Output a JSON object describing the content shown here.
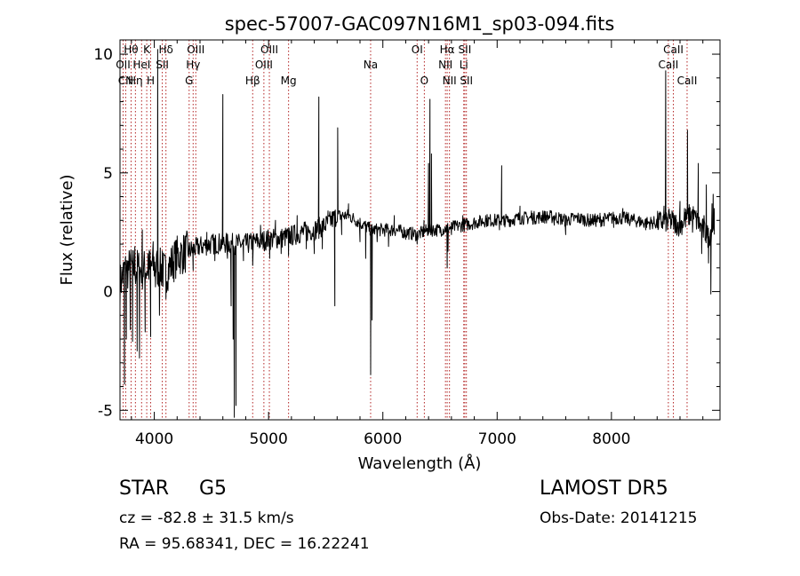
{
  "chart_data": {
    "type": "line",
    "title": "spec-57007-GAC097N16M1_sp03-094.fits",
    "xlabel": "Wavelength (Å)",
    "ylabel": "Flux (relative)",
    "xlim": [
      3700,
      8950
    ],
    "ylim": [
      -5.4,
      10.6
    ],
    "xticks": [
      4000,
      5000,
      6000,
      7000,
      8000
    ],
    "xtick_labels": [
      "4000",
      "5000",
      "6000",
      "7000",
      "8000"
    ],
    "yticks": [
      -5,
      0,
      5,
      10
    ],
    "ytick_labels": [
      "-5",
      "0",
      "5",
      "10"
    ],
    "grid": false,
    "line_color": "#000000",
    "marker_color": "#b22222",
    "series": [
      {
        "anchors": [
          [
            3700,
            0.3
          ],
          [
            3740,
            0.9
          ],
          [
            3800,
            1.0
          ],
          [
            3900,
            0.9
          ],
          [
            4000,
            1.1
          ],
          [
            4100,
            0.8
          ],
          [
            4200,
            1.5
          ],
          [
            4300,
            1.7
          ],
          [
            4400,
            1.9
          ],
          [
            4500,
            2.0
          ],
          [
            4600,
            2.05
          ],
          [
            4700,
            2.0
          ],
          [
            4800,
            2.0
          ],
          [
            4900,
            2.1
          ],
          [
            5000,
            2.2
          ],
          [
            5100,
            2.25
          ],
          [
            5200,
            2.35
          ],
          [
            5300,
            2.5
          ],
          [
            5400,
            2.6
          ],
          [
            5500,
            2.8
          ],
          [
            5600,
            3.2
          ],
          [
            5700,
            3.2
          ],
          [
            5800,
            2.9
          ],
          [
            5900,
            2.6
          ],
          [
            6000,
            2.6
          ],
          [
            6100,
            2.6
          ],
          [
            6200,
            2.5
          ],
          [
            6300,
            2.4
          ],
          [
            6400,
            2.6
          ],
          [
            6500,
            2.6
          ],
          [
            6600,
            2.7
          ],
          [
            6700,
            2.8
          ],
          [
            6800,
            2.9
          ],
          [
            6900,
            3.0
          ],
          [
            7000,
            3.0
          ],
          [
            7100,
            3.0
          ],
          [
            7200,
            3.1
          ],
          [
            7300,
            3.1
          ],
          [
            7400,
            3.15
          ],
          [
            7500,
            3.15
          ],
          [
            7600,
            3.0
          ],
          [
            7700,
            3.1
          ],
          [
            7800,
            3.0
          ],
          [
            7900,
            3.0
          ],
          [
            8000,
            3.1
          ],
          [
            8100,
            3.1
          ],
          [
            8200,
            3.0
          ],
          [
            8300,
            2.9
          ],
          [
            8400,
            2.9
          ],
          [
            8500,
            3.0
          ],
          [
            8600,
            2.8
          ],
          [
            8700,
            3.3
          ],
          [
            8800,
            2.6
          ],
          [
            8850,
            2.3
          ],
          [
            8900,
            2.9
          ]
        ],
        "spikes": [
          [
            3740,
            -3.9
          ],
          [
            3755,
            -2.0
          ],
          [
            3790,
            -1.6
          ],
          [
            3810,
            -2.1
          ],
          [
            3830,
            1.9
          ],
          [
            3850,
            -2.5
          ],
          [
            3870,
            -2.8
          ],
          [
            3895,
            2.6
          ],
          [
            3920,
            -1.7
          ],
          [
            3945,
            1.6
          ],
          [
            3968,
            -1.9
          ],
          [
            3990,
            2.1
          ],
          [
            4010,
            0.2
          ],
          [
            4030,
            10.2
          ],
          [
            4045,
            -1.0
          ],
          [
            4070,
            1.7
          ],
          [
            4102,
            -0.3
          ],
          [
            4130,
            1.2
          ],
          [
            4200,
            2.2
          ],
          [
            4340,
            0.9
          ],
          [
            4380,
            2.1
          ],
          [
            4460,
            2.5
          ],
          [
            4530,
            1.3
          ],
          [
            4600,
            8.3
          ],
          [
            4640,
            1.4
          ],
          [
            4672,
            -0.6
          ],
          [
            4690,
            -2.0
          ],
          [
            4700,
            -5.3
          ],
          [
            4715,
            -4.8
          ],
          [
            4780,
            1.3
          ],
          [
            4830,
            2.1
          ],
          [
            4861,
            1.1
          ],
          [
            4930,
            2.8
          ],
          [
            5010,
            1.4
          ],
          [
            5060,
            3.0
          ],
          [
            5110,
            1.6
          ],
          [
            5175,
            1.5
          ],
          [
            5250,
            3.2
          ],
          [
            5330,
            1.8
          ],
          [
            5400,
            1.6
          ],
          [
            5440,
            8.2
          ],
          [
            5470,
            1.8
          ],
          [
            5520,
            3.4
          ],
          [
            5580,
            -0.6
          ],
          [
            5605,
            6.9
          ],
          [
            5640,
            2.4
          ],
          [
            5700,
            3.7
          ],
          [
            5800,
            2.1
          ],
          [
            5850,
            1.4
          ],
          [
            5893,
            -3.5
          ],
          [
            5905,
            -1.2
          ],
          [
            5950,
            2.1
          ],
          [
            6050,
            1.9
          ],
          [
            6100,
            3.2
          ],
          [
            6200,
            2.2
          ],
          [
            6300,
            2.0
          ],
          [
            6360,
            3.0
          ],
          [
            6400,
            5.4
          ],
          [
            6412,
            8.1
          ],
          [
            6425,
            5.8
          ],
          [
            6480,
            2.7
          ],
          [
            6563,
            1.0
          ],
          [
            6570,
            1.7
          ],
          [
            6600,
            2.4
          ],
          [
            6700,
            3.2
          ],
          [
            6800,
            3.1
          ],
          [
            6900,
            3.2
          ],
          [
            7020,
            2.6
          ],
          [
            7040,
            5.3
          ],
          [
            7060,
            2.8
          ],
          [
            7200,
            3.6
          ],
          [
            7300,
            3.4
          ],
          [
            7400,
            3.4
          ],
          [
            7500,
            2.8
          ],
          [
            7600,
            2.4
          ],
          [
            7650,
            3.3
          ],
          [
            7800,
            2.8
          ],
          [
            7900,
            3.3
          ],
          [
            8020,
            2.7
          ],
          [
            8100,
            3.5
          ],
          [
            8200,
            3.2
          ],
          [
            8300,
            2.6
          ],
          [
            8400,
            2.7
          ],
          [
            8460,
            3.6
          ],
          [
            8475,
            9.3
          ],
          [
            8490,
            2.6
          ],
          [
            8530,
            3.4
          ],
          [
            8565,
            2.5
          ],
          [
            8600,
            3.8
          ],
          [
            8640,
            3.5
          ],
          [
            8665,
            6.8
          ],
          [
            8690,
            3.0
          ],
          [
            8710,
            2.5
          ],
          [
            8760,
            5.4
          ],
          [
            8790,
            1.6
          ],
          [
            8810,
            3.2
          ],
          [
            8830,
            4.5
          ],
          [
            8850,
            1.2
          ],
          [
            8870,
            -0.1
          ],
          [
            8880,
            3.7
          ],
          [
            8890,
            4.1
          ],
          [
            8900,
            3.5
          ]
        ]
      }
    ],
    "line_markers": [
      {
        "label": "Hθ",
        "x": 3797,
        "row": 0
      },
      {
        "label": "K",
        "x": 3934,
        "row": 0
      },
      {
        "label": "Hδ",
        "x": 4102,
        "row": 0
      },
      {
        "label": "OIII",
        "x": 4363,
        "row": 0
      },
      {
        "label": "OIII",
        "x": 5007,
        "row": 0
      },
      {
        "label": "OI",
        "x": 6300,
        "row": 0
      },
      {
        "label": "Hα",
        "x": 6563,
        "row": 0
      },
      {
        "label": "SII",
        "x": 6717,
        "row": 0
      },
      {
        "label": "CaII",
        "x": 8542,
        "row": 0
      },
      {
        "label": "OII",
        "x": 3727,
        "row": 1
      },
      {
        "label": "HeI",
        "x": 3889,
        "row": 1
      },
      {
        "label": "SII",
        "x": 4070,
        "row": 1
      },
      {
        "label": "Hγ",
        "x": 4340,
        "row": 1
      },
      {
        "label": "OIII",
        "x": 4959,
        "row": 1
      },
      {
        "label": "Na",
        "x": 5893,
        "row": 1
      },
      {
        "label": "NII",
        "x": 6548,
        "row": 1
      },
      {
        "label": "Li",
        "x": 6708,
        "row": 1
      },
      {
        "label": "CaII",
        "x": 8498,
        "row": 1
      },
      {
        "label": "CN",
        "x": 3750,
        "row": 2
      },
      {
        "label": "Hη",
        "x": 3835,
        "row": 2
      },
      {
        "label": "H",
        "x": 3968,
        "row": 2
      },
      {
        "label": "G",
        "x": 4305,
        "row": 2
      },
      {
        "label": "Hβ",
        "x": 4861,
        "row": 2
      },
      {
        "label": "Mg",
        "x": 5175,
        "row": 2
      },
      {
        "label": "O",
        "x": 6363,
        "row": 2
      },
      {
        "label": "NII",
        "x": 6583,
        "row": 2
      },
      {
        "label": "SII",
        "x": 6731,
        "row": 2
      },
      {
        "label": "CaII",
        "x": 8662,
        "row": 2
      }
    ]
  },
  "info": {
    "object_class": "STAR",
    "subclass": "G5",
    "survey": "LAMOST DR5",
    "cz": "cz = -82.8 ± 31.5 km/s",
    "obs_date": "Obs-Date: 20141215",
    "radec": "RA =  95.68341, DEC =  16.22241"
  }
}
